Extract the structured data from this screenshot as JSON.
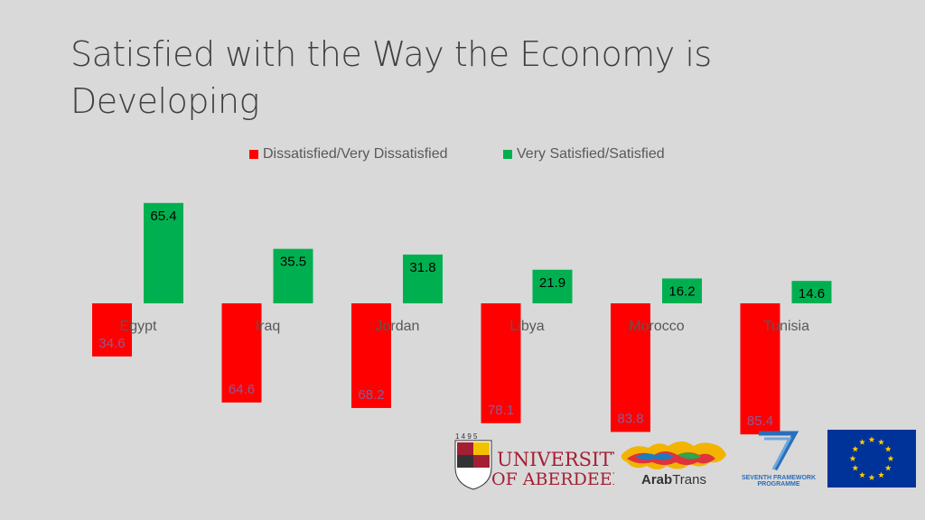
{
  "title": "Satisfied with the Way the Economy is Developing",
  "colors": {
    "dissatisfied": "#ff0000",
    "satisfied": "#00b050"
  },
  "logos": {
    "aberdeen_year": "1 4 9 5",
    "aberdeen_line1": "UNIVERSITY",
    "aberdeen_line2": "OF ABERDEEN",
    "arabtrans_bold": "Arab",
    "arabtrans_light": "Trans",
    "fp7_line1": "SEVENTH FRAMEWORK",
    "fp7_line2": "PROGRAMME"
  },
  "chart_data": {
    "type": "bar",
    "categories": [
      "Egypt",
      "Iraq",
      "Jordan",
      "Libya",
      "Morocco",
      "Tunisia"
    ],
    "series": [
      {
        "name": "Dissatisfied/Very Dissatisfied",
        "values": [
          34.6,
          64.6,
          68.2,
          78.1,
          83.8,
          85.4
        ],
        "direction": "down",
        "color": "#ff0000"
      },
      {
        "name": "Very Satisfied/Satisfied",
        "values": [
          65.4,
          35.5,
          31.8,
          21.9,
          16.2,
          14.6
        ],
        "direction": "up",
        "color": "#00b050"
      }
    ],
    "legend_position": "top",
    "grid": false
  }
}
